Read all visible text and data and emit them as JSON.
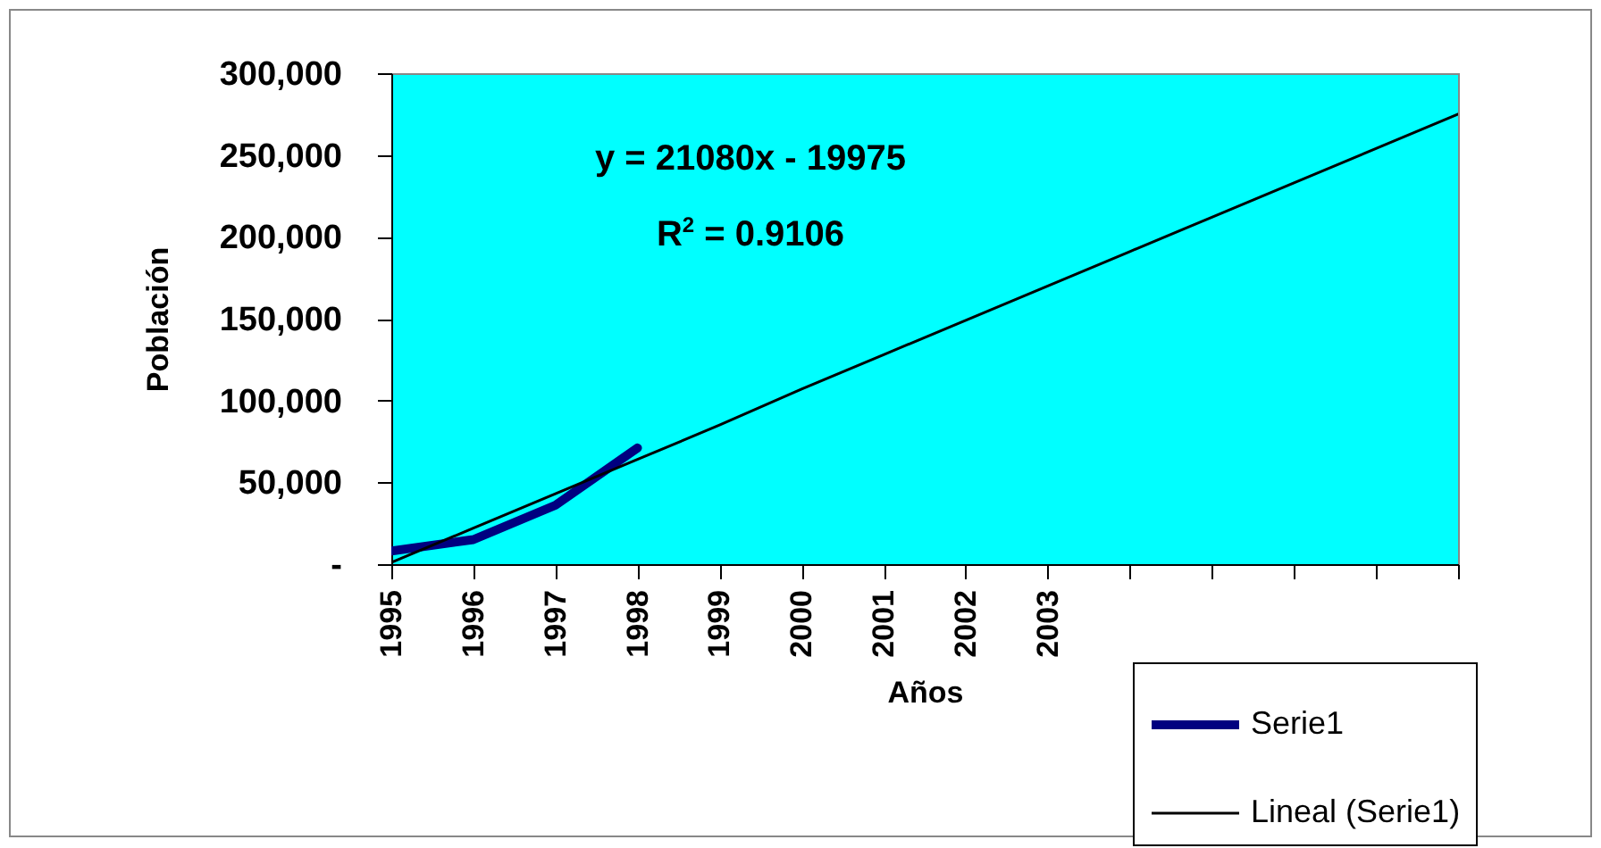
{
  "chart_data": {
    "type": "line",
    "xlabel": "Años",
    "ylabel": "Población",
    "categories": [
      "1995",
      "1996",
      "1997",
      "1998",
      "1999",
      "2000",
      "2001",
      "2002",
      "2003",
      null,
      null,
      null,
      null,
      null
    ],
    "series": [
      {
        "name": "Serie1",
        "color": "#000080",
        "values": [
          8000,
          15000,
          36000,
          71000,
          null,
          null,
          null,
          null,
          null,
          null,
          null,
          null,
          null,
          null
        ]
      },
      {
        "name": "Lineal (Serie1)",
        "type": "line",
        "color": "#000000",
        "values": [
          1000,
          22000,
          43000,
          64000,
          85000,
          107000,
          128000,
          149000,
          170000,
          191000,
          212000,
          233000,
          254000,
          275000
        ]
      }
    ],
    "ylim": [
      0,
      300000
    ],
    "yticks": [
      {
        "value": 0,
        "label": "-"
      },
      {
        "value": 50000,
        "label": "50,000"
      },
      {
        "value": 100000,
        "label": "100,000"
      },
      {
        "value": 150000,
        "label": "150,000"
      },
      {
        "value": 200000,
        "label": "200,000"
      },
      {
        "value": 250000,
        "label": "250,000"
      },
      {
        "value": 300000,
        "label": "300,000"
      }
    ],
    "annotations": [
      "y = 21080x - 19975",
      "R$^{2}$ = 0.9106"
    ],
    "grid": false,
    "legend": "bottom right",
    "marker": "none",
    "line_style": "solid"
  }
}
